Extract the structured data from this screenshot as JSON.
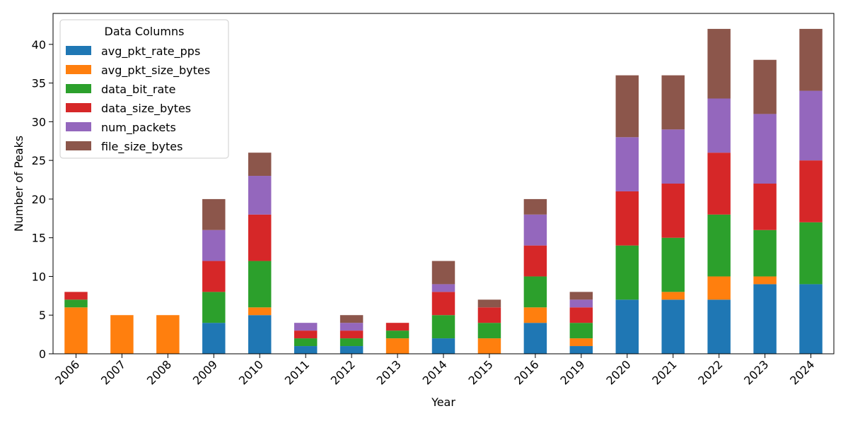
{
  "chart_data": {
    "type": "bar",
    "stacked": true,
    "title": "",
    "xlabel": "Year",
    "ylabel": "Number of Peaks",
    "ylim": [
      0,
      44
    ],
    "yticks": [
      0,
      5,
      10,
      15,
      20,
      25,
      30,
      35,
      40
    ],
    "grid": false,
    "legend": {
      "title": "Data Columns",
      "position": "top-left"
    },
    "categories": [
      "2006",
      "2007",
      "2008",
      "2009",
      "2010",
      "2011",
      "2012",
      "2013",
      "2014",
      "2015",
      "2016",
      "2019",
      "2020",
      "2021",
      "2022",
      "2023",
      "2024"
    ],
    "series": [
      {
        "name": "avg_pkt_rate_pps",
        "color": "#1f77b4",
        "values": [
          0,
          0,
          0,
          4,
          5,
          1,
          1,
          0,
          2,
          0,
          4,
          1,
          7,
          7,
          7,
          9,
          9
        ]
      },
      {
        "name": "avg_pkt_size_bytes",
        "color": "#ff7f0e",
        "values": [
          6,
          5,
          5,
          0,
          1,
          0,
          0,
          2,
          0,
          2,
          2,
          1,
          0,
          1,
          3,
          1,
          0
        ]
      },
      {
        "name": "data_bit_rate",
        "color": "#2ca02c",
        "values": [
          1,
          0,
          0,
          4,
          6,
          1,
          1,
          1,
          3,
          2,
          4,
          2,
          7,
          7,
          8,
          6,
          8
        ]
      },
      {
        "name": "data_size_bytes",
        "color": "#d62728",
        "values": [
          1,
          0,
          0,
          4,
          6,
          1,
          1,
          1,
          3,
          2,
          4,
          2,
          7,
          7,
          8,
          6,
          8
        ]
      },
      {
        "name": "num_packets",
        "color": "#9467bd",
        "values": [
          0,
          0,
          0,
          4,
          5,
          1,
          1,
          0,
          1,
          0,
          4,
          1,
          7,
          7,
          7,
          9,
          9
        ]
      },
      {
        "name": "file_size_bytes",
        "color": "#8c564b",
        "values": [
          0,
          0,
          0,
          4,
          3,
          0,
          1,
          0,
          3,
          1,
          2,
          1,
          8,
          7,
          9,
          7,
          8
        ]
      }
    ]
  }
}
